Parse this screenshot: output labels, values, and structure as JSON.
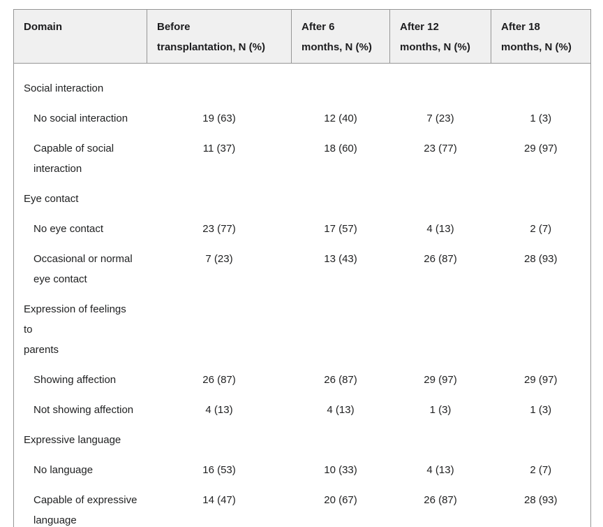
{
  "table": {
    "columns": [
      {
        "label": "Domain"
      },
      {
        "label": "Before\ntransplantation, N (%)"
      },
      {
        "label": "After 6\nmonths, N (%)"
      },
      {
        "label": "After 12\nmonths, N (%)"
      },
      {
        "label": "After 18\nmonths, N (%)"
      }
    ],
    "rows": [
      {
        "label": "Social interaction",
        "indent": false,
        "values": [
          "",
          "",
          "",
          ""
        ]
      },
      {
        "label": "No social interaction",
        "indent": true,
        "values": [
          "19 (63)",
          "12 (40)",
          "7 (23)",
          "1 (3)"
        ]
      },
      {
        "label": "Capable of social\ninteraction",
        "indent": true,
        "values": [
          "11 (37)",
          "18 (60)",
          "23 (77)",
          "29 (97)"
        ]
      },
      {
        "label": "Eye contact",
        "indent": false,
        "values": [
          "",
          "",
          "",
          ""
        ]
      },
      {
        "label": "No eye contact",
        "indent": true,
        "values": [
          "23 (77)",
          "17 (57)",
          "4 (13)",
          "2 (7)"
        ]
      },
      {
        "label": "Occasional or normal\neye contact",
        "indent": true,
        "values": [
          "7 (23)",
          "13 (43)",
          "26 (87)",
          "28 (93)"
        ]
      },
      {
        "label": "Expression of feelings to\nparents",
        "indent": false,
        "values": [
          "",
          "",
          "",
          ""
        ]
      },
      {
        "label": "Showing affection",
        "indent": true,
        "values": [
          "26 (87)",
          "26 (87)",
          "29 (97)",
          "29 (97)"
        ]
      },
      {
        "label": "Not showing affection",
        "indent": true,
        "values": [
          "4 (13)",
          "4 (13)",
          "1 (3)",
          "1 (3)"
        ]
      },
      {
        "label": "Expressive language",
        "indent": false,
        "values": [
          "",
          "",
          "",
          ""
        ]
      },
      {
        "label": "No language",
        "indent": true,
        "values": [
          "16 (53)",
          "10 (33)",
          "4 (13)",
          "2 (7)"
        ]
      },
      {
        "label": "Capable of expressive\nlanguage",
        "indent": true,
        "values": [
          "14 (47)",
          "20 (67)",
          "26 (87)",
          "28 (93)"
        ]
      }
    ],
    "colors": {
      "header_background": "#f0f0f0",
      "border": "#969696",
      "text": "#202122"
    }
  }
}
